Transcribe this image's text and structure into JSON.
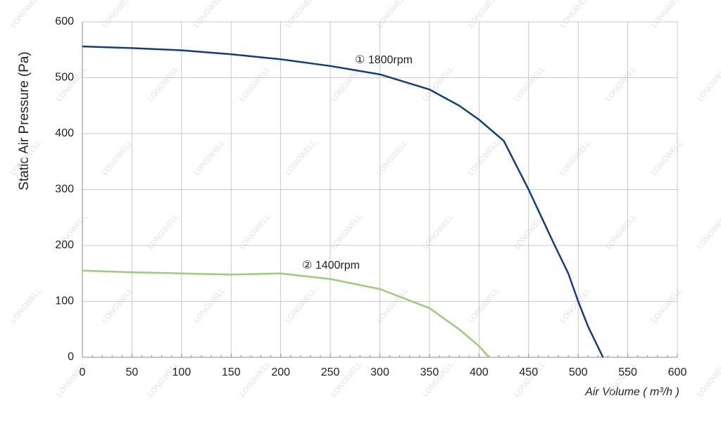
{
  "chart_data": {
    "type": "line",
    "x_label": "Air Volume ( m³/h )",
    "y_label": "Static Air Pressure  (Pa)",
    "watermark": "LONGWELL",
    "xlim": [
      0,
      600
    ],
    "xticks": [
      0,
      50,
      100,
      150,
      200,
      250,
      300,
      350,
      400,
      450,
      500,
      550,
      600
    ],
    "ylim": [
      0,
      600
    ],
    "yticks": [
      0,
      100,
      200,
      300,
      400,
      500,
      600
    ],
    "grid": true,
    "series": [
      {
        "name": "① 1800rpm",
        "color": "#123f7c",
        "x": [
          0,
          50,
          100,
          150,
          200,
          250,
          300,
          350,
          380,
          400,
          425,
          450,
          475,
          490,
          500,
          510,
          525
        ],
        "values": [
          556,
          553,
          549,
          542,
          533,
          521,
          506,
          479,
          450,
          425,
          387,
          300,
          205,
          150,
          100,
          55,
          0
        ]
      },
      {
        "name": "② 1400rpm",
        "color": "#9ccb7c",
        "x": [
          0,
          50,
          100,
          150,
          200,
          250,
          300,
          350,
          380,
          400,
          410
        ],
        "values": [
          155,
          152,
          150,
          148,
          150,
          140,
          122,
          88,
          50,
          20,
          0
        ]
      }
    ]
  }
}
